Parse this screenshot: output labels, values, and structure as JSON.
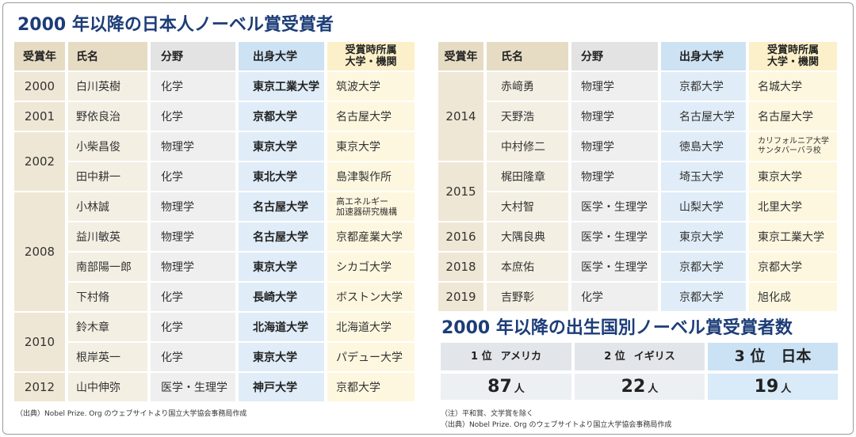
{
  "title": "2000 年以降の日本人ノーベル賞受賞者",
  "headers": {
    "year": "受賞年",
    "name": "氏名",
    "field": "分野",
    "alma_mater": "出身大学",
    "affiliation": "受賞時所属\n大学・機関"
  },
  "left_table": [
    {
      "year": "2000",
      "laureates": [
        {
          "name": "白川英樹",
          "field": "化学",
          "alma_mater": "東京工業大学",
          "affiliation": "筑波大学"
        }
      ]
    },
    {
      "year": "2001",
      "laureates": [
        {
          "name": "野依良治",
          "field": "化学",
          "alma_mater": "京都大学",
          "affiliation": "名古屋大学"
        }
      ]
    },
    {
      "year": "2002",
      "laureates": [
        {
          "name": "小柴昌俊",
          "field": "物理学",
          "alma_mater": "東京大学",
          "affiliation": "東京大学"
        },
        {
          "name": "田中耕一",
          "field": "化学",
          "alma_mater": "東北大学",
          "affiliation": "島津製作所"
        }
      ]
    },
    {
      "year": "2008",
      "laureates": [
        {
          "name": "小林誠",
          "field": "物理学",
          "alma_mater": "名古屋大学",
          "affiliation": "高エネルギー\n加速器研究機構"
        },
        {
          "name": "益川敏英",
          "field": "物理学",
          "alma_mater": "名古屋大学",
          "affiliation": "京都産業大学"
        },
        {
          "name": "南部陽一郎",
          "field": "物理学",
          "alma_mater": "東京大学",
          "affiliation": "シカゴ大学"
        },
        {
          "name": "下村脩",
          "field": "化学",
          "alma_mater": "長崎大学",
          "affiliation": "ボストン大学"
        }
      ]
    },
    {
      "year": "2010",
      "laureates": [
        {
          "name": "鈴木章",
          "field": "化学",
          "alma_mater": "北海道大学",
          "affiliation": "北海道大学"
        },
        {
          "name": "根岸英一",
          "field": "化学",
          "alma_mater": "東京大学",
          "affiliation": "パデュー大学"
        }
      ]
    },
    {
      "year": "2012",
      "laureates": [
        {
          "name": "山中伸弥",
          "field": "医学・生理学",
          "alma_mater": "神戸大学",
          "affiliation": "京都大学"
        }
      ]
    }
  ],
  "right_table": [
    {
      "year": "2014",
      "laureates": [
        {
          "name": "赤﨑勇",
          "field": "物理学",
          "alma_mater": "京都大学",
          "affiliation": "名城大学"
        },
        {
          "name": "天野浩",
          "field": "物理学",
          "alma_mater": "名古屋大学",
          "affiliation": "名古屋大学"
        },
        {
          "name": "中村修二",
          "field": "物理学",
          "alma_mater": "徳島大学",
          "affiliation": "カリフォルニア大学\nサンタバーバラ校"
        }
      ]
    },
    {
      "year": "2015",
      "laureates": [
        {
          "name": "梶田隆章",
          "field": "物理学",
          "alma_mater": "埼玉大学",
          "affiliation": "東京大学"
        },
        {
          "name": "大村智",
          "field": "医学・生理学",
          "alma_mater": "山梨大学",
          "affiliation": "北里大学"
        }
      ]
    },
    {
      "year": "2016",
      "laureates": [
        {
          "name": "大隅良典",
          "field": "医学・生理学",
          "alma_mater": "東京大学",
          "affiliation": "東京工業大学"
        }
      ]
    },
    {
      "year": "2018",
      "laureates": [
        {
          "name": "本庶佑",
          "field": "医学・生理学",
          "alma_mater": "京都大学",
          "affiliation": "京都大学"
        }
      ]
    },
    {
      "year": "2019",
      "laureates": [
        {
          "name": "吉野彰",
          "field": "化学",
          "alma_mater": "京都大学",
          "affiliation": "旭化成"
        }
      ]
    }
  ],
  "ranking": {
    "title": "2000 年以降の出生国別ノーベル賞受賞者数",
    "entries": [
      {
        "rank": "1 位",
        "country": "アメリカ",
        "count": "87",
        "unit": "人"
      },
      {
        "rank": "2 位",
        "country": "イギリス",
        "count": "22",
        "unit": "人"
      },
      {
        "rank": "3 位",
        "country": "日本",
        "count": "19",
        "unit": "人"
      }
    ]
  },
  "notes": {
    "left_source": "（出典）Nobel Prize. Org のウェブサイトより国立大学協会事務局作成",
    "right_note": "（注）平和賞、文学賞を除く",
    "right_source": "（出典）Nobel Prize. Org のウェブサイトより国立大学協会事務局作成"
  },
  "colors": {
    "title": "#1c3d78",
    "year_header_bg": "#e6dbc3",
    "year_bg": "#efe7d5",
    "name_header_bg": "#e6dbc3",
    "name_bg": "#f4efe3",
    "field_header_bg": "#e3e3e3",
    "field_bg": "#efefef",
    "alma_header_bg": "#cde2f3",
    "alma_bg": "#e0edf8",
    "affil_header_bg": "#fbf0c9",
    "affil_bg": "#fdf7df",
    "rank_gray_top": "#e2e6ea",
    "rank_gray_bottom": "#edf0f3",
    "rank_blue_top": "#cbe2f5",
    "rank_blue_bottom": "#d9eaf8"
  }
}
